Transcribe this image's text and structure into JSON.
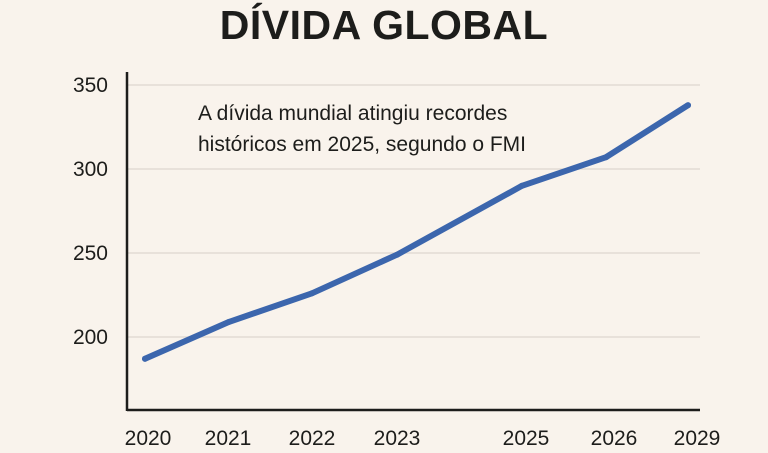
{
  "chart_data": {
    "type": "line",
    "title": "DÍVIDA GLOBAL",
    "xlabel": "",
    "ylabel": "",
    "x": [
      "2020",
      "2021",
      "2022",
      "2023",
      "2025",
      "2026",
      "2029"
    ],
    "categories": [
      "2020",
      "2021",
      "2022",
      "2023",
      "2025",
      "2026",
      "2029"
    ],
    "series": [
      {
        "name": "Dívida global",
        "values": [
          187,
          209,
          226,
          249,
          290,
          307,
          338
        ],
        "color": "#3c66ad"
      }
    ],
    "yticks": [
      200,
      250,
      300,
      350
    ],
    "ylim": [
      156,
      358
    ],
    "grid": true,
    "legend": "none",
    "annotation": {
      "lines": [
        "A dívida mundial atingiu recordes",
        "históricos em 2025, segundo o FMI"
      ],
      "placement": "top-left"
    }
  },
  "colors": {
    "background": "#f9f3ec",
    "line": "#3c66ad",
    "grid": "#e2dbd3",
    "axis": "#1d1d1b",
    "text": "#1d1d1b"
  }
}
